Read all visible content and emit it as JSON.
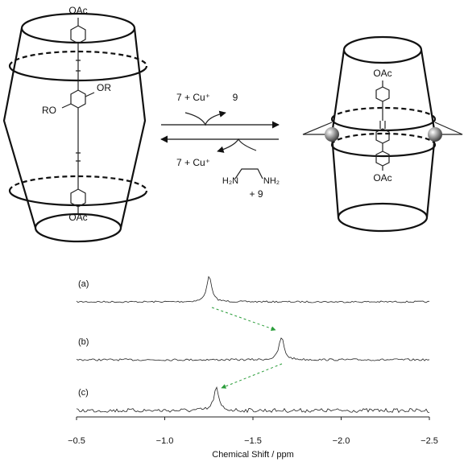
{
  "diagram": {
    "labels": {
      "left_top_oac": "OAc",
      "left_or": "OR",
      "left_ro": "RO",
      "left_bottom_oac": "OAc",
      "forward_reagent": "7 + Cu⁺",
      "forward_product": "9",
      "reverse_product": "7 + Cu⁺",
      "amine_left": "H₂N",
      "amine_right": "NH₂",
      "reverse_reagent": "+ 9",
      "right_top_oac": "OAc",
      "right_bottom_oac": "OAc"
    }
  },
  "chart_data": {
    "type": "spectrum",
    "xlabel": "Chemical Shift / ppm",
    "xlim": [
      -0.5,
      -2.5
    ],
    "xticks": [
      {
        "value": -0.5,
        "label": "−0.5"
      },
      {
        "value": -1.0,
        "label": "−1.0"
      },
      {
        "value": -1.5,
        "label": "−1.5"
      },
      {
        "value": -2.0,
        "label": "−2.0"
      },
      {
        "value": -2.5,
        "label": "−2.5"
      }
    ],
    "series": [
      {
        "name": "(a)",
        "peak": -1.25
      },
      {
        "name": "(b)",
        "peak": -1.66
      },
      {
        "name": "(c)",
        "peak": -1.29
      }
    ]
  }
}
